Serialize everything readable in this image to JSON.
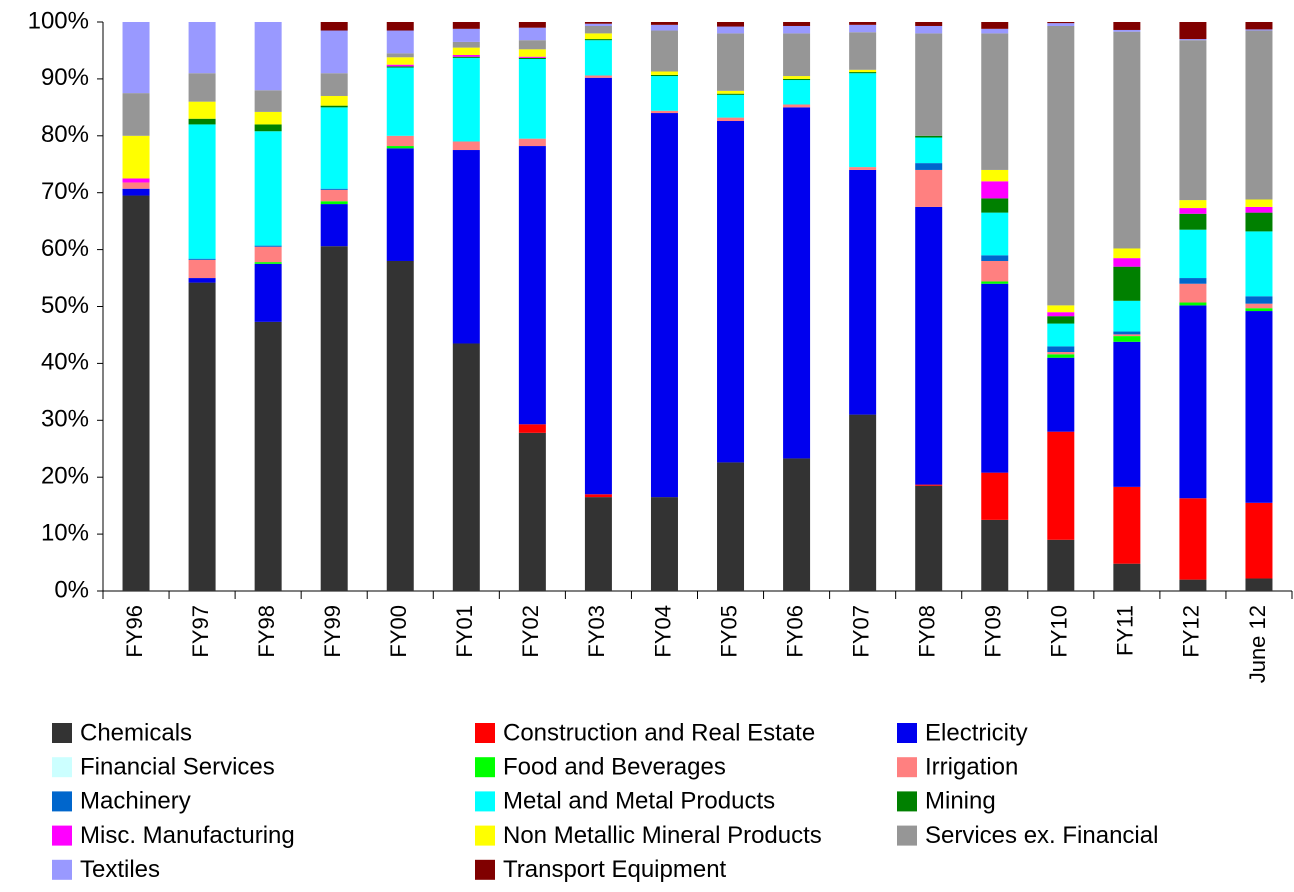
{
  "chart_data": {
    "type": "stacked_bar",
    "categories": [
      "FY96",
      "FY97",
      "FY98",
      "FY99",
      "FY00",
      "FY01",
      "FY02",
      "FY03",
      "FY04",
      "FY05",
      "FY06",
      "FY07",
      "FY08",
      "FY09",
      "FY10",
      "FY11",
      "FY12",
      "June 12"
    ],
    "ylim": [
      0,
      100
    ],
    "yticks": [
      {
        "value": 0,
        "label": "0%"
      },
      {
        "value": 10,
        "label": "10%"
      },
      {
        "value": 20,
        "label": "20%"
      },
      {
        "value": 30,
        "label": "30%"
      },
      {
        "value": 40,
        "label": "40%"
      },
      {
        "value": 50,
        "label": "50%"
      },
      {
        "value": 60,
        "label": "60%"
      },
      {
        "value": 70,
        "label": "70%"
      },
      {
        "value": 80,
        "label": "80%"
      },
      {
        "value": 90,
        "label": "90%"
      },
      {
        "value": 100,
        "label": "100%"
      }
    ],
    "grid": false,
    "legend": "bottom",
    "series": [
      {
        "name": "Chemicals",
        "color": "#333333",
        "values": [
          69.5,
          54.2,
          47.3,
          60.6,
          58,
          43.5,
          27.8,
          16.5,
          16.5,
          22.6,
          23.3,
          31,
          18.5,
          12.5,
          9,
          4.8,
          2,
          2.2
        ]
      },
      {
        "name": "Construction and Real Estate",
        "color": "#ff0000",
        "values": [
          0,
          0,
          0,
          0,
          0,
          0,
          1.5,
          0.5,
          0,
          0,
          0,
          0,
          0.2,
          8.3,
          19,
          13.5,
          14.3,
          13.3
        ]
      },
      {
        "name": "Electricity",
        "color": "#0000ee",
        "values": [
          1.2,
          0.8,
          10.2,
          7.4,
          19.8,
          34,
          48.9,
          73.2,
          67.5,
          60,
          61.7,
          43,
          48.8,
          33.2,
          13,
          25.5,
          33.9,
          33.7
        ]
      },
      {
        "name": "Financial Services",
        "color": "#ccffff",
        "values": [
          0,
          0,
          0,
          0,
          0,
          0,
          0,
          0,
          0,
          0,
          0,
          0,
          0,
          0,
          0,
          0,
          0,
          0
        ]
      },
      {
        "name": "Food and Beverages",
        "color": "#00ff00",
        "values": [
          0,
          0,
          0.3,
          0.5,
          0.4,
          0,
          0,
          0,
          0,
          0,
          0,
          0,
          0,
          0.4,
          0.6,
          1,
          0.5,
          0.5
        ]
      },
      {
        "name": "Irrigation",
        "color": "#ff8080",
        "values": [
          1.1,
          3.2,
          2.7,
          2,
          1.8,
          1.5,
          1.3,
          0.4,
          0.4,
          0.6,
          0.5,
          0.5,
          6.5,
          3.6,
          0.4,
          0.3,
          3.3,
          0.8
        ]
      },
      {
        "name": "Machinery",
        "color": "#0066cc",
        "values": [
          0,
          0.2,
          0.2,
          0.2,
          0,
          0,
          0,
          0,
          0,
          0,
          0,
          0,
          1.2,
          1,
          1,
          0.5,
          1,
          1.3
        ]
      },
      {
        "name": "Metal and Metal Products",
        "color": "#00ffff",
        "values": [
          0,
          23.6,
          20.1,
          14.3,
          12,
          14.7,
          14,
          6.2,
          6.1,
          4,
          4.3,
          16.5,
          4.5,
          7.5,
          4,
          5.4,
          8.5,
          11.4
        ]
      },
      {
        "name": "Mining",
        "color": "#008000",
        "values": [
          0,
          1,
          1.2,
          0.3,
          0.2,
          0.2,
          0.2,
          0.2,
          0.2,
          0.2,
          0.2,
          0.2,
          0.3,
          2.5,
          1.3,
          6,
          2.8,
          3.3
        ]
      },
      {
        "name": "Misc. Manufacturing",
        "color": "#ff00ff",
        "values": [
          0.7,
          0,
          0,
          0,
          0.3,
          0.3,
          0.2,
          0,
          0,
          0,
          0,
          0,
          0,
          3,
          0.7,
          1.5,
          1,
          1
        ]
      },
      {
        "name": "Non Metallic Mineral Products",
        "color": "#ffff00",
        "values": [
          7.5,
          3,
          2.2,
          1.7,
          1.3,
          1.3,
          1.3,
          1,
          0.6,
          0.5,
          0.5,
          0.4,
          0,
          2,
          1.2,
          1.7,
          1.4,
          1.3
        ]
      },
      {
        "name": "Services ex. Financial",
        "color": "#969696",
        "values": [
          7.5,
          5,
          3.8,
          4,
          0.7,
          1,
          1.6,
          1.3,
          7.2,
          10.1,
          7.5,
          6.6,
          18,
          24,
          49.1,
          38.1,
          28.1,
          29.7
        ]
      },
      {
        "name": "Textiles",
        "color": "#9999ff",
        "values": [
          12.5,
          9,
          12,
          7.5,
          4,
          2.3,
          2.2,
          0.4,
          1,
          1.2,
          1.3,
          1.3,
          1.3,
          0.8,
          0.5,
          0.3,
          0.2,
          0.2
        ]
      },
      {
        "name": "Transport Equipment",
        "color": "#800000",
        "values": [
          0,
          0,
          0,
          1.5,
          1.5,
          1.2,
          1,
          0.3,
          0.5,
          0.8,
          0.7,
          0.5,
          0.7,
          1.2,
          0.2,
          1.4,
          3,
          1.3
        ]
      }
    ]
  }
}
